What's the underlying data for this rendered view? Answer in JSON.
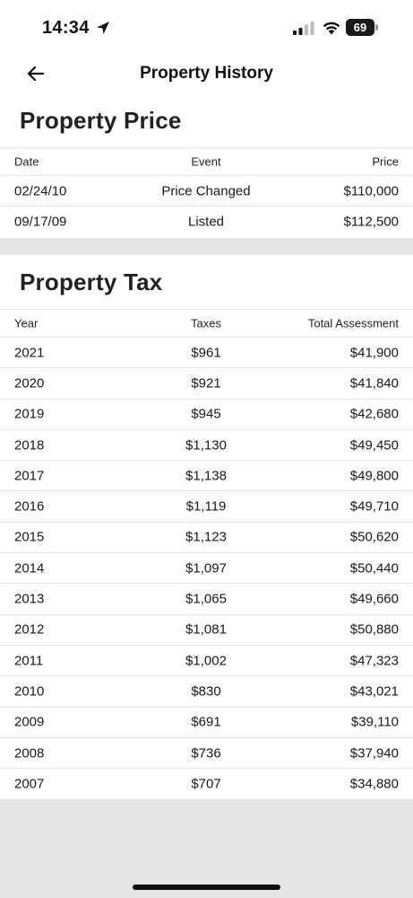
{
  "status_bar": {
    "time": "14:34",
    "battery": "69"
  },
  "header": {
    "title": "Property History"
  },
  "price_section": {
    "title": "Property Price",
    "columns": [
      "Date",
      "Event",
      "Price"
    ],
    "rows": [
      [
        "02/24/10",
        "Price Changed",
        "$110,000"
      ],
      [
        "09/17/09",
        "Listed",
        "$112,500"
      ]
    ]
  },
  "tax_section": {
    "title": "Property Tax",
    "columns": [
      "Year",
      "Taxes",
      "Total Assessment"
    ],
    "rows": [
      [
        "2021",
        "$961",
        "$41,900"
      ],
      [
        "2020",
        "$921",
        "$41,840"
      ],
      [
        "2019",
        "$945",
        "$42,680"
      ],
      [
        "2018",
        "$1,130",
        "$49,450"
      ],
      [
        "2017",
        "$1,138",
        "$49,800"
      ],
      [
        "2016",
        "$1,119",
        "$49,710"
      ],
      [
        "2015",
        "$1,123",
        "$50,620"
      ],
      [
        "2014",
        "$1,097",
        "$50,440"
      ],
      [
        "2013",
        "$1,065",
        "$49,660"
      ],
      [
        "2012",
        "$1,081",
        "$50,880"
      ],
      [
        "2011",
        "$1,002",
        "$47,323"
      ],
      [
        "2010",
        "$830",
        "$43,021"
      ],
      [
        "2009",
        "$691",
        "$39,110"
      ],
      [
        "2008",
        "$736",
        "$37,940"
      ],
      [
        "2007",
        "$707",
        "$34,880"
      ]
    ]
  },
  "icons": {
    "back": "arrow-left-icon",
    "location": "location-arrow-icon",
    "signal": "cellular-signal-icon",
    "wifi": "wifi-icon",
    "battery": "battery-icon"
  },
  "colors": {
    "background_gray": "#e5e5e5",
    "text": "#1a1a1a",
    "row_border": "#e6e6e6"
  }
}
